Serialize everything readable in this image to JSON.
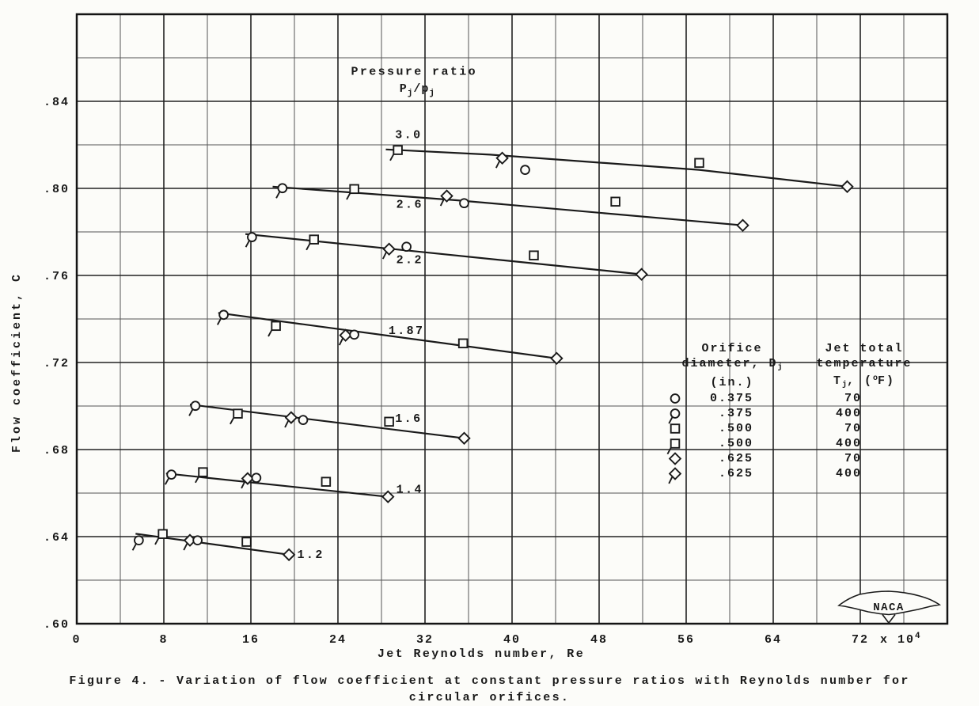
{
  "figure": {
    "caption_line1": "Figure 4. - Variation of flow coefficient at constant pressure ratios with Reynolds number for",
    "caption_line2": "circular orifices."
  },
  "axes": {
    "x_title": "Jet Reynolds number, Re",
    "y_title": "Flow coefficient, C"
  },
  "naca": {
    "label": "NACA"
  },
  "legend": {
    "headers": [
      {
        "lines": [
          [
            {
              "t": "Orifice"
            }
          ],
          [
            {
              "t": "diameter, D"
            },
            {
              "t": "j",
              "sub": true
            }
          ],
          [
            {
              "t": "(in.)"
            }
          ]
        ]
      },
      {
        "lines": [
          [
            {
              "t": "Jet total"
            }
          ],
          [
            {
              "t": "temperature"
            }
          ],
          [
            {
              "t": "T"
            },
            {
              "t": "j",
              "sub": true
            },
            {
              "t": ", ("
            },
            {
              "t": "o",
              "sup": true
            },
            {
              "t": "F)"
            }
          ]
        ]
      }
    ],
    "rows": [
      {
        "symbol": "circle",
        "diameter": "0.375",
        "temperature": "70"
      },
      {
        "symbol": "circle-tailed",
        "diameter": ".375",
        "temperature": "400"
      },
      {
        "symbol": "square",
        "diameter": ".500",
        "temperature": "70"
      },
      {
        "symbol": "square-tailed",
        "diameter": ".500",
        "temperature": "400"
      },
      {
        "symbol": "diamond",
        "diameter": ".625",
        "temperature": "70"
      },
      {
        "symbol": "diamond-tailed",
        "diameter": ".625",
        "temperature": "400"
      }
    ]
  },
  "chart_data": {
    "type": "scatter",
    "title": "",
    "xlabel": "Jet Reynolds number, Re",
    "ylabel": "Flow coefficient, C",
    "xlim": [
      0,
      80
    ],
    "ylim": [
      0.6,
      0.88
    ],
    "x_units_note": "Reynolds number in units of 10^4",
    "grid": "on",
    "x_gridlines_minor": [
      4,
      12,
      20,
      28,
      36,
      44,
      52,
      60,
      68,
      76
    ],
    "x_gridlines_major": [
      8,
      16,
      24,
      32,
      40,
      48,
      56,
      64,
      72
    ],
    "y_gridlines_minor": [
      0.62,
      0.66,
      0.7,
      0.74,
      0.78,
      0.82,
      0.86
    ],
    "y_gridlines_major": [
      0.64,
      0.68,
      0.72,
      0.76,
      0.8,
      0.84
    ],
    "x_ticks": [
      {
        "v": 0,
        "t": "0"
      },
      {
        "v": 8,
        "t": "8"
      },
      {
        "v": 16,
        "t": "16"
      },
      {
        "v": 24,
        "t": "24"
      },
      {
        "v": 32,
        "t": "32"
      },
      {
        "v": 40,
        "t": "40"
      },
      {
        "v": 48,
        "t": "48"
      },
      {
        "v": 56,
        "t": "56"
      },
      {
        "v": 64,
        "t": "64"
      },
      {
        "v": 72,
        "t": "72"
      }
    ],
    "x_suffix": {
      "text": "x 10",
      "sup": "4"
    },
    "y_ticks": [
      {
        "v": 0.6,
        "t": ".60"
      },
      {
        "v": 0.64,
        "t": ".64"
      },
      {
        "v": 0.68,
        "t": ".68"
      },
      {
        "v": 0.72,
        "t": ".72"
      },
      {
        "v": 0.76,
        "t": ".76"
      },
      {
        "v": 0.8,
        "t": ".80"
      },
      {
        "v": 0.84,
        "t": ".84"
      }
    ],
    "annotation": {
      "line1": "Pressure ratio",
      "line1_pos": [
        31.0,
        0.854
      ],
      "formula_parts": [
        {
          "t": "P"
        },
        {
          "t": "j",
          "sub": true
        },
        {
          "t": "/p"
        },
        {
          "t": "j",
          "sub": true
        }
      ],
      "formula_pos": [
        31.3,
        0.8462
      ]
    },
    "pressure_ratio_series": [
      {
        "ratio": "3.0",
        "label_pos": [
          30.5,
          0.825
        ],
        "trend": [
          [
            28.4,
            0.8179
          ],
          [
            38.0,
            0.8155
          ],
          [
            57.2,
            0.8085
          ],
          [
            70.8,
            0.8008
          ]
        ],
        "points": [
          {
            "symbol": "square-tailed",
            "x": 29.5,
            "y": 0.8176
          },
          {
            "symbol": "diamond-tailed",
            "x": 39.1,
            "y": 0.8139
          },
          {
            "symbol": "circle",
            "x": 41.2,
            "y": 0.8085
          },
          {
            "symbol": "square",
            "x": 57.2,
            "y": 0.8117
          },
          {
            "symbol": "diamond",
            "x": 70.8,
            "y": 0.8008
          }
        ]
      },
      {
        "ratio": "2.6",
        "label_pos": [
          30.6,
          0.793
        ],
        "trend": [
          [
            18.0,
            0.8008
          ],
          [
            35.0,
            0.7945
          ],
          [
            61.2,
            0.783
          ]
        ],
        "points": [
          {
            "symbol": "circle-tailed",
            "x": 18.9,
            "y": 0.8001
          },
          {
            "symbol": "square-tailed",
            "x": 25.5,
            "y": 0.7997
          },
          {
            "symbol": "diamond-tailed",
            "x": 34.0,
            "y": 0.7965
          },
          {
            "symbol": "circle",
            "x": 35.6,
            "y": 0.7932
          },
          {
            "symbol": "square",
            "x": 49.5,
            "y": 0.7939
          },
          {
            "symbol": "diamond",
            "x": 61.2,
            "y": 0.783
          }
        ]
      },
      {
        "ratio": "2.2",
        "label_pos": [
          30.6,
          0.7675
        ],
        "trend": [
          [
            15.5,
            0.779
          ],
          [
            51.9,
            0.7605
          ]
        ],
        "points": [
          {
            "symbol": "circle-tailed",
            "x": 16.1,
            "y": 0.7776
          },
          {
            "symbol": "square-tailed",
            "x": 21.8,
            "y": 0.7765
          },
          {
            "symbol": "diamond-tailed",
            "x": 28.7,
            "y": 0.7721
          },
          {
            "symbol": "circle",
            "x": 30.3,
            "y": 0.7732
          },
          {
            "symbol": "square",
            "x": 42.0,
            "y": 0.7692
          },
          {
            "symbol": "diamond",
            "x": 51.9,
            "y": 0.7605
          }
        ]
      },
      {
        "ratio": "1.87",
        "label_pos": [
          30.3,
          0.735
        ],
        "trend": [
          [
            13.0,
            0.7428
          ],
          [
            44.1,
            0.7219
          ]
        ],
        "points": [
          {
            "symbol": "circle-tailed",
            "x": 13.5,
            "y": 0.7419
          },
          {
            "symbol": "square-tailed",
            "x": 18.3,
            "y": 0.7368
          },
          {
            "symbol": "diamond-tailed",
            "x": 24.7,
            "y": 0.7325
          },
          {
            "symbol": "circle",
            "x": 25.5,
            "y": 0.7328
          },
          {
            "symbol": "square",
            "x": 35.5,
            "y": 0.7288
          },
          {
            "symbol": "diamond",
            "x": 44.1,
            "y": 0.7219
          }
        ]
      },
      {
        "ratio": "1.6",
        "label_pos": [
          30.5,
          0.6945
        ],
        "trend": [
          [
            10.4,
            0.7007
          ],
          [
            35.6,
            0.6852
          ]
        ],
        "points": [
          {
            "symbol": "circle-tailed",
            "x": 10.9,
            "y": 0.7001
          },
          {
            "symbol": "square-tailed",
            "x": 14.8,
            "y": 0.6965
          },
          {
            "symbol": "diamond-tailed",
            "x": 19.7,
            "y": 0.6947
          },
          {
            "symbol": "circle",
            "x": 20.8,
            "y": 0.6936
          },
          {
            "symbol": "square",
            "x": 28.7,
            "y": 0.6928
          },
          {
            "symbol": "diamond",
            "x": 35.6,
            "y": 0.6852
          }
        ]
      },
      {
        "ratio": "1.4",
        "label_pos": [
          30.6,
          0.662
        ],
        "trend": [
          [
            8.2,
            0.669
          ],
          [
            28.6,
            0.6583
          ]
        ],
        "points": [
          {
            "symbol": "circle-tailed",
            "x": 8.7,
            "y": 0.6685
          },
          {
            "symbol": "square-tailed",
            "x": 11.6,
            "y": 0.6696
          },
          {
            "symbol": "diamond-tailed",
            "x": 15.7,
            "y": 0.6667
          },
          {
            "symbol": "circle",
            "x": 16.5,
            "y": 0.667
          },
          {
            "symbol": "square",
            "x": 22.9,
            "y": 0.6652
          },
          {
            "symbol": "diamond",
            "x": 28.6,
            "y": 0.6583
          }
        ]
      },
      {
        "ratio": "1.2",
        "label_pos": [
          21.5,
          0.632
        ],
        "trend": [
          [
            5.4,
            0.6413
          ],
          [
            19.5,
            0.6317
          ]
        ],
        "points": [
          {
            "symbol": "circle-tailed",
            "x": 5.7,
            "y": 0.6383
          },
          {
            "symbol": "square-tailed",
            "x": 7.9,
            "y": 0.6412
          },
          {
            "symbol": "diamond-tailed",
            "x": 10.4,
            "y": 0.6383
          },
          {
            "symbol": "circle",
            "x": 11.1,
            "y": 0.6383
          },
          {
            "symbol": "square",
            "x": 15.6,
            "y": 0.6376
          },
          {
            "symbol": "diamond",
            "x": 19.5,
            "y": 0.6317
          }
        ]
      }
    ]
  }
}
